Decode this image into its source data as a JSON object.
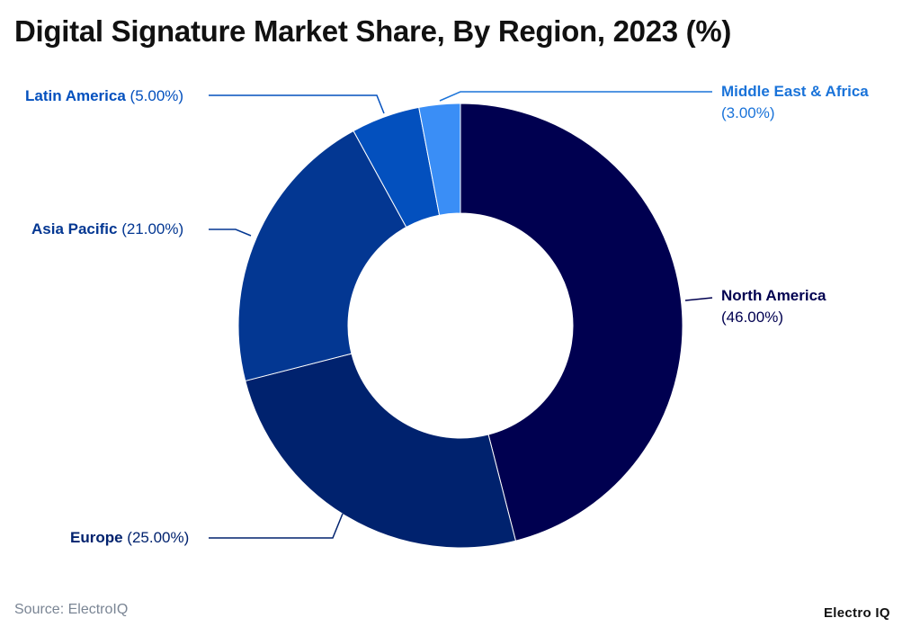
{
  "title": "Digital Signature Market Share, By Region, 2023 (%)",
  "source": "Source: ElectroIQ",
  "brand": "Electro IQ",
  "labels": {
    "north_america": {
      "name": "North America",
      "value": "(46.00%)",
      "color": "#000050"
    },
    "europe": {
      "name": "Europe",
      "value": "(25.00%)",
      "color": "#00226e"
    },
    "asia_pacific": {
      "name": "Asia Pacific",
      "value": "(21.00%)",
      "color": "#033792"
    },
    "latin_america": {
      "name": "Latin America",
      "value": "(5.00%)",
      "color": "#0350be"
    },
    "middle_east_africa": {
      "name": "Middle East & Africa",
      "value": "(3.00%)",
      "color": "#1a73d9"
    }
  },
  "chart_data": {
    "type": "pie",
    "subtype": "donut",
    "title": "Digital Signature Market Share, By Region, 2023 (%)",
    "categories": [
      "North America",
      "Europe",
      "Asia Pacific",
      "Latin America",
      "Middle East & Africa"
    ],
    "values": [
      46.0,
      25.0,
      21.0,
      5.0,
      3.0
    ],
    "colors": [
      "#000050",
      "#00226e",
      "#033792",
      "#0350be",
      "#3a8ef6"
    ],
    "unit": "%",
    "start_angle": "12 o'clock, clockwise",
    "legend": "none (callout labels)",
    "source": "ElectroIQ"
  }
}
